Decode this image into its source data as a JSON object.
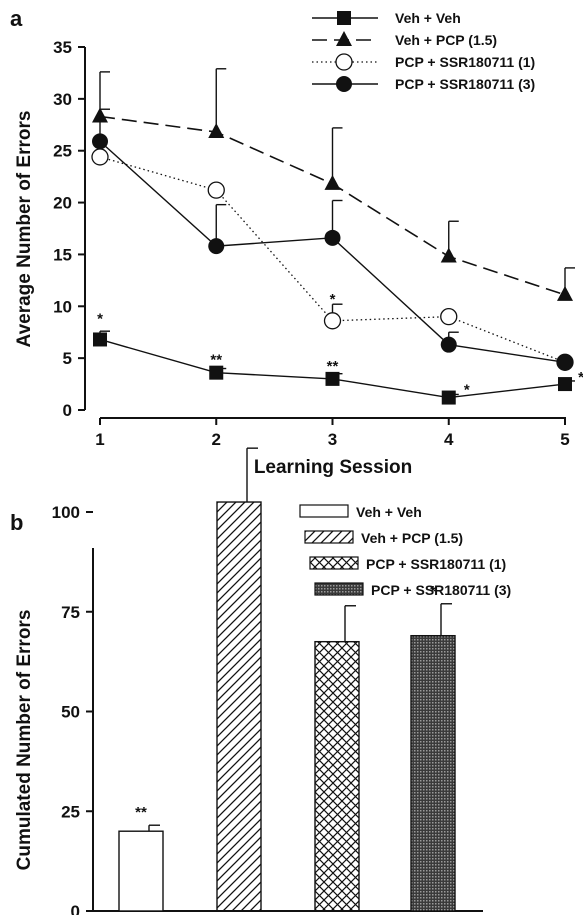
{
  "chart_data": [
    {
      "panel": "a",
      "type": "line",
      "xlabel": "Learning Session",
      "ylabel": "Average Number of Errors",
      "x": [
        1,
        2,
        3,
        4,
        5
      ],
      "xticks": [
        "1",
        "2",
        "3",
        "4",
        "5"
      ],
      "ylim": [
        0,
        35
      ],
      "yticks": [
        "0",
        "5",
        "10",
        "15",
        "20",
        "25",
        "30",
        "35"
      ],
      "grid": false,
      "legend_position": "top-right",
      "series": [
        {
          "name": "Veh + Veh",
          "marker": "filled-square",
          "line": "solid",
          "values": [
            6.8,
            3.6,
            3.0,
            1.2,
            2.5
          ],
          "error": [
            0.8,
            0.4,
            0.5,
            0.3,
            0.3
          ],
          "significance": [
            "*",
            "**",
            "**",
            "*",
            "*"
          ]
        },
        {
          "name": "Veh + PCP (1.5)",
          "marker": "filled-triangle",
          "line": "dashed",
          "values": [
            28.3,
            26.8,
            21.8,
            14.8,
            11.1
          ],
          "error": [
            4.3,
            6.1,
            5.4,
            3.4,
            2.6
          ],
          "significance": [
            "",
            "",
            "",
            "",
            ""
          ]
        },
        {
          "name": "PCP + SSR180711 (1)",
          "marker": "open-circle",
          "line": "dotted",
          "values": [
            24.4,
            21.2,
            8.6,
            9.0,
            4.6
          ],
          "error": [
            4.6,
            0,
            1.6,
            0,
            0
          ],
          "significance": [
            "",
            "",
            "*",
            "",
            ""
          ]
        },
        {
          "name": "PCP + SSR180711 (3)",
          "marker": "filled-circle",
          "line": "solid",
          "values": [
            25.9,
            15.8,
            16.6,
            6.3,
            4.6
          ],
          "error": [
            0,
            4.0,
            3.6,
            1.2,
            0
          ],
          "significance": [
            "",
            "",
            "",
            "",
            ""
          ]
        }
      ]
    },
    {
      "panel": "b",
      "type": "bar",
      "ylabel": "Cumulated Number of Errors",
      "categories": [
        "Veh + Veh",
        "Veh + PCP (1.5)",
        "PCP + SSR180711 (1)",
        "PCP + SSR180711 (3)"
      ],
      "values": [
        20,
        102.5,
        67.5,
        69
      ],
      "error": [
        1.5,
        13.5,
        9,
        8
      ],
      "significance": [
        "**",
        "",
        "*",
        "*"
      ],
      "fills": [
        "open",
        "diagonal-hatch",
        "cross-hatch",
        "dense-dots"
      ],
      "ylim": [
        0,
        120
      ],
      "yticks": [
        "0",
        "25",
        "50",
        "75",
        "100"
      ],
      "grid": false,
      "legend_position": "top-right"
    }
  ]
}
